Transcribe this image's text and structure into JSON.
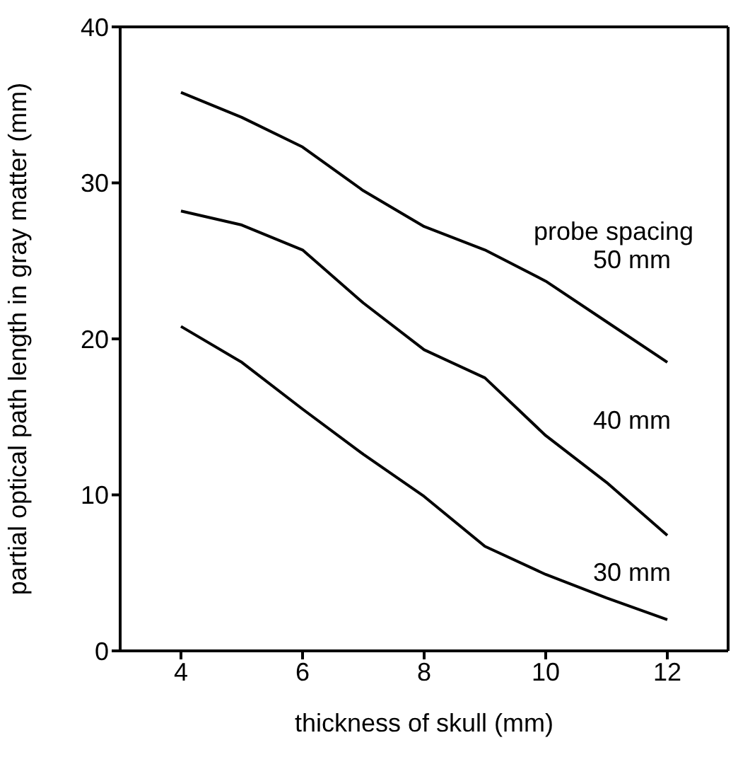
{
  "chart_data": {
    "type": "line",
    "xlabel": "thickness of skull  (mm)",
    "ylabel": "partial optical path length in gray matter  (mm)",
    "x": [
      4,
      5,
      6,
      7,
      8,
      9,
      10,
      11,
      12
    ],
    "series": [
      {
        "name": "50 mm",
        "color": "#000000",
        "values": [
          35.8,
          34.2,
          32.3,
          29.5,
          27.2,
          25.7,
          23.7,
          21.1,
          18.5
        ]
      },
      {
        "name": "40 mm",
        "color": "#000000",
        "values": [
          28.2,
          27.3,
          25.7,
          22.3,
          19.3,
          17.5,
          13.8,
          10.8,
          7.4
        ]
      },
      {
        "name": "30 mm",
        "color": "#000000",
        "values": [
          20.8,
          18.5,
          15.5,
          12.6,
          9.9,
          6.7,
          4.9,
          3.4,
          2.0
        ]
      }
    ],
    "xlim": [
      3,
      13
    ],
    "xticks": [
      4,
      6,
      8,
      10,
      12
    ],
    "ylim": [
      0,
      40
    ],
    "yticks": [
      0,
      10,
      20,
      30,
      40
    ],
    "grid": false,
    "legend": false,
    "marker": "none",
    "line_style": "solid",
    "annotations": [
      "probe spacing"
    ]
  }
}
